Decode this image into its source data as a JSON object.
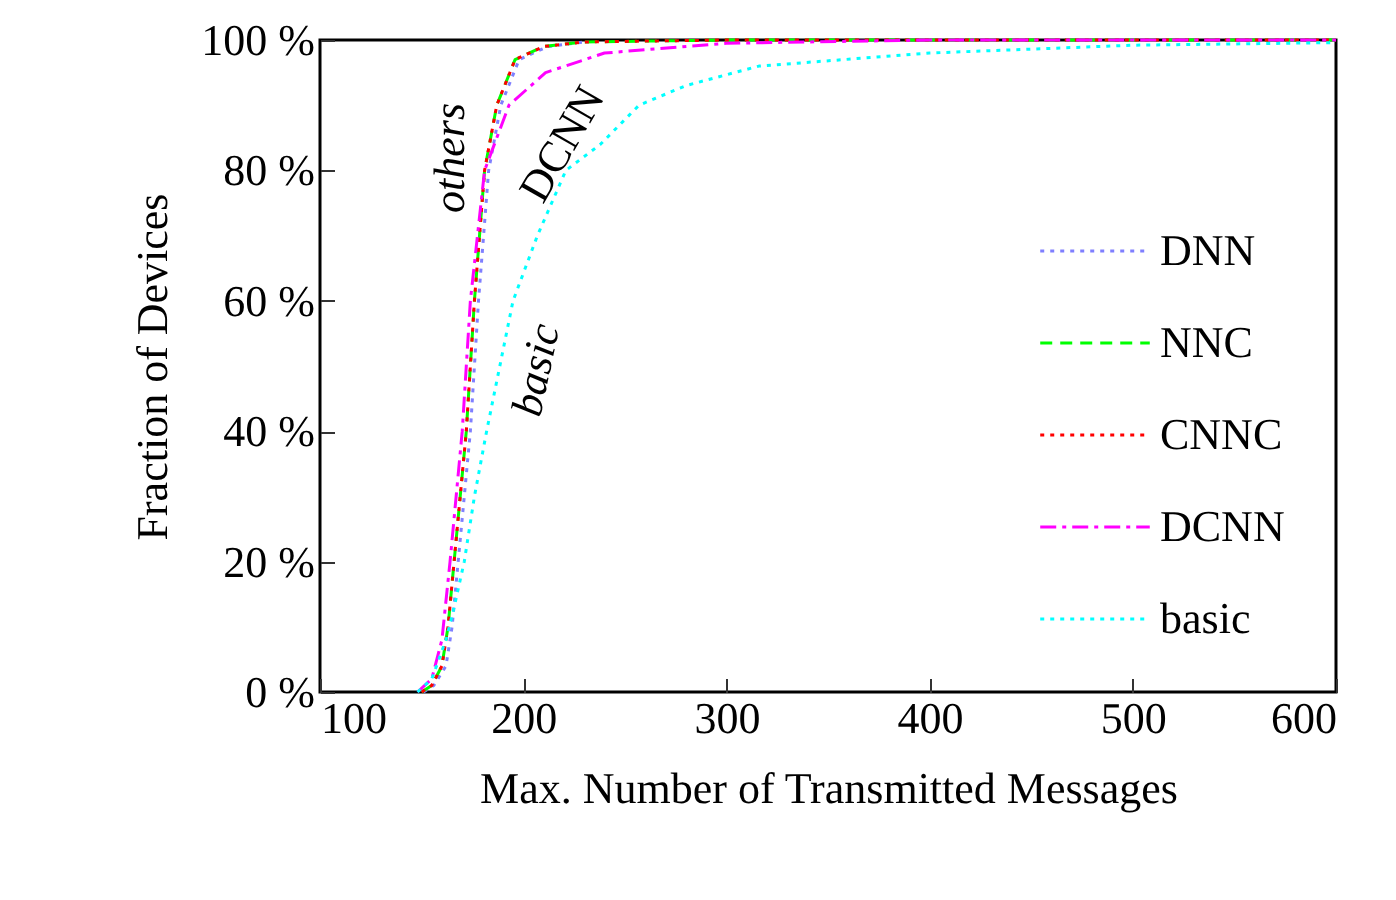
{
  "chart_data": {
    "type": "line",
    "xlabel": "Max. Number of Transmitted Messages",
    "ylabel": "Fraction of Devices",
    "xlim": [
      100,
      600
    ],
    "xticks": [
      100,
      200,
      300,
      400,
      500,
      600
    ],
    "ylim": [
      0,
      100
    ],
    "yticks": [
      {
        "value": 0,
        "label": "0 %"
      },
      {
        "value": 20,
        "label": "20 %"
      },
      {
        "value": 40,
        "label": "40 %"
      },
      {
        "value": 60,
        "label": "60 %"
      },
      {
        "value": 80,
        "label": "80 %"
      },
      {
        "value": 100,
        "label": "100 %"
      }
    ],
    "legend": "bottom right",
    "grid": false,
    "series": [
      {
        "name": "DNN",
        "color": "#7f7fff",
        "line_style": "dotted",
        "x": [
          151,
          156,
          162,
          165,
          168,
          171,
          174,
          178,
          183,
          189,
          198,
          212,
          230
        ],
        "values": [
          0,
          1,
          4,
          10,
          20,
          30,
          40,
          60,
          80,
          90,
          97,
          99,
          99.7
        ]
      },
      {
        "name": "NNC",
        "color": "#00ff00",
        "line_style": "dashed",
        "x": [
          150,
          155,
          160,
          163,
          166,
          169,
          172,
          176,
          181,
          187,
          196,
          210,
          230,
          300,
          400,
          600
        ],
        "values": [
          0,
          1,
          4,
          10,
          20,
          30,
          40,
          60,
          80,
          90,
          97,
          99,
          99.7,
          100,
          100,
          100
        ]
      },
      {
        "name": "CNNC",
        "color": "#ff0000",
        "line_style": "dotted",
        "x": [
          150,
          155,
          160,
          163,
          166,
          169,
          172,
          176,
          181,
          187,
          196,
          210,
          230,
          300,
          400,
          600
        ],
        "values": [
          0,
          1,
          4,
          10,
          20,
          30,
          40,
          60,
          80,
          90,
          97,
          99,
          99.7,
          100,
          100,
          100
        ]
      },
      {
        "name": "DCNN",
        "color": "#ff00ff",
        "line_style": "dashdot",
        "x": [
          148,
          155,
          160,
          164,
          167,
          170,
          174,
          181,
          193,
          211,
          240,
          300,
          400,
          600
        ],
        "values": [
          0,
          2,
          8,
          20,
          30,
          40,
          60,
          80,
          90,
          95,
          98,
          99.5,
          100,
          100
        ]
      },
      {
        "name": "basic",
        "color": "#00ffff",
        "line_style": "dotted",
        "x": [
          148,
          155,
          162,
          166,
          171,
          176,
          182,
          195,
          207,
          221,
          238,
          257,
          280,
          316,
          400,
          500,
          600
        ],
        "values": [
          0,
          2,
          8,
          13,
          20,
          30,
          40,
          60,
          70,
          80,
          84,
          90,
          93,
          96,
          98,
          99.2,
          99.6
        ]
      }
    ],
    "annotations": [
      "others",
      "DCNN",
      "basic"
    ]
  }
}
